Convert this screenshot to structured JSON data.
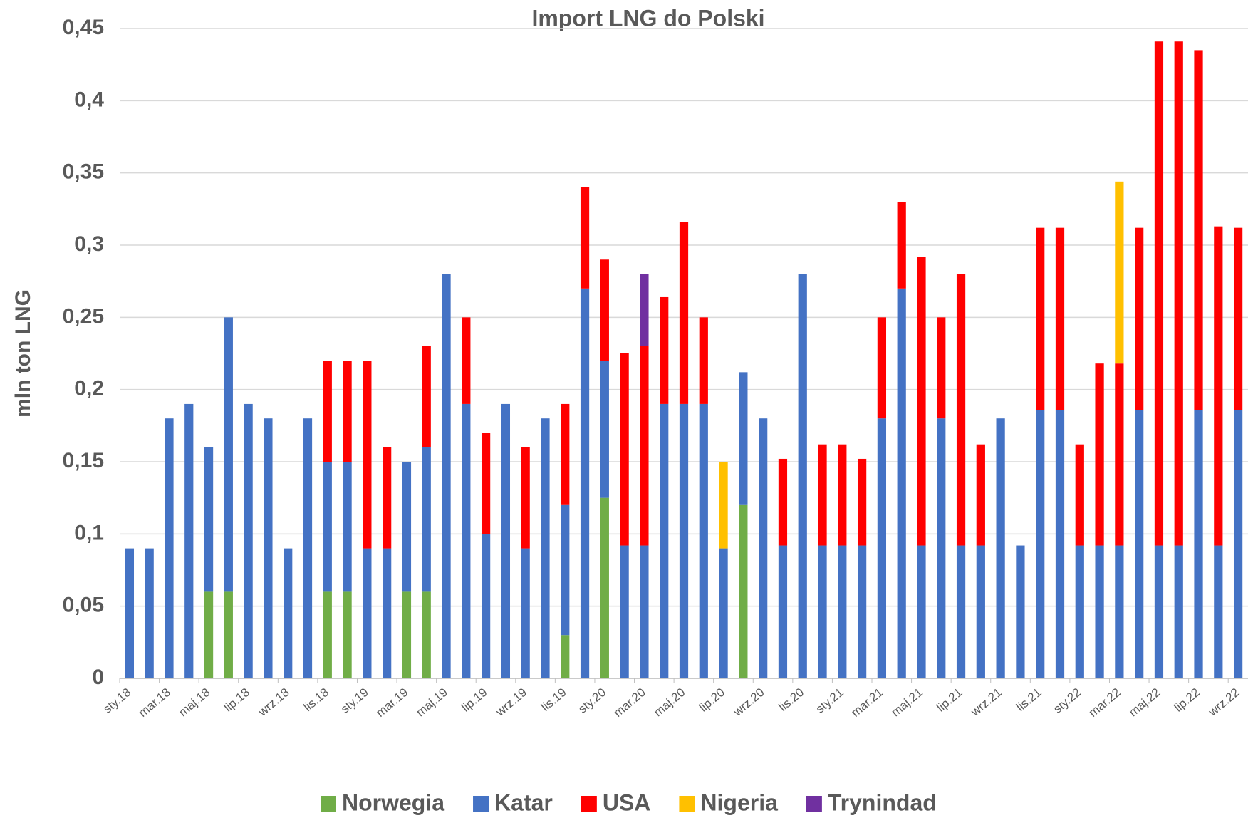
{
  "chart_data": {
    "type": "stacked_bar",
    "title": "Import LNG do Polski",
    "y_label": "mln ton LNG",
    "categories": [
      "sty.18",
      null,
      "mar.18",
      null,
      "maj.18",
      null,
      "lip.18",
      null,
      "wrz.18",
      null,
      "lis.18",
      null,
      "sty.19",
      null,
      "mar.19",
      null,
      "maj.19",
      null,
      "lip.19",
      null,
      "wrz.19",
      null,
      "lis.19",
      null,
      "sty.20",
      null,
      "mar.20",
      null,
      "maj.20",
      null,
      "lip.20",
      null,
      "wrz.20",
      null,
      "lis.20",
      null,
      "sty.21",
      null,
      "mar.21",
      null,
      "maj.21",
      null,
      "lip.21",
      null,
      "wrz.21",
      null,
      "lis.21",
      null,
      "sty.22",
      null,
      "mar.22",
      null,
      "maj.22",
      null,
      "lip.22",
      null,
      "wrz.22"
    ],
    "series": [
      {
        "name": "Norwegia",
        "color": "#70ad47",
        "values": [
          null,
          null,
          null,
          null,
          0.06,
          0.06,
          null,
          null,
          null,
          null,
          0.06,
          0.06,
          null,
          null,
          0.06,
          0.06,
          null,
          null,
          null,
          null,
          null,
          null,
          0.03,
          null,
          0.125,
          null,
          null,
          null,
          null,
          null,
          null,
          0.12,
          null,
          null,
          null,
          null,
          null,
          null,
          null,
          null,
          null,
          null,
          null,
          null,
          null,
          null,
          null,
          null,
          null,
          null,
          null,
          null,
          null,
          null,
          null,
          null,
          null
        ]
      },
      {
        "name": "Katar",
        "color": "#4472c4",
        "values": [
          0.09,
          0.09,
          0.18,
          0.19,
          0.1,
          0.19,
          0.19,
          0.18,
          0.09,
          0.18,
          0.09,
          0.09,
          0.09,
          0.09,
          0.09,
          0.1,
          0.28,
          0.19,
          0.1,
          0.19,
          0.09,
          0.18,
          0.09,
          0.27,
          0.095,
          0.092,
          0.092,
          0.19,
          0.19,
          0.19,
          0.09,
          0.092,
          0.18,
          0.092,
          0.28,
          0.092,
          0.092,
          0.092,
          0.18,
          0.27,
          0.092,
          0.18,
          0.092,
          0.092,
          0.18,
          0.092,
          0.186,
          0.186,
          0.092,
          0.092,
          0.092,
          0.186,
          0.092,
          0.092,
          0.186,
          0.092,
          0.186
        ]
      },
      {
        "name": "USA",
        "color": "#ff0000",
        "values": [
          null,
          null,
          null,
          null,
          null,
          null,
          null,
          null,
          null,
          null,
          0.07,
          0.07,
          0.13,
          0.07,
          null,
          0.07,
          null,
          0.06,
          0.07,
          null,
          0.07,
          null,
          0.07,
          0.07,
          0.07,
          0.133,
          0.138,
          0.074,
          0.126,
          0.06,
          null,
          null,
          null,
          0.06,
          null,
          0.07,
          0.07,
          0.06,
          0.07,
          0.06,
          0.2,
          0.07,
          0.188,
          0.07,
          null,
          null,
          0.126,
          0.126,
          0.07,
          0.126,
          0.126,
          0.126,
          0.349,
          0.349,
          0.249,
          0.221,
          0.126
        ]
      },
      {
        "name": "Nigeria",
        "color": "#ffc000",
        "values": [
          null,
          null,
          null,
          null,
          null,
          null,
          null,
          null,
          null,
          null,
          null,
          null,
          null,
          null,
          null,
          null,
          null,
          null,
          null,
          null,
          null,
          null,
          null,
          null,
          null,
          null,
          null,
          null,
          null,
          null,
          0.06,
          null,
          null,
          null,
          null,
          null,
          null,
          null,
          null,
          null,
          null,
          null,
          null,
          null,
          null,
          null,
          null,
          null,
          null,
          null,
          0.126,
          null,
          null,
          null,
          null,
          null,
          null
        ]
      },
      {
        "name": "Trynindad",
        "color": "#7030a0",
        "values": [
          null,
          null,
          null,
          null,
          null,
          null,
          null,
          null,
          null,
          null,
          null,
          null,
          null,
          null,
          null,
          null,
          null,
          null,
          null,
          null,
          null,
          null,
          null,
          null,
          null,
          null,
          0.05,
          null,
          null,
          null,
          null,
          null,
          null,
          null,
          null,
          null,
          null,
          null,
          null,
          null,
          null,
          null,
          null,
          null,
          null,
          null,
          null,
          null,
          null,
          null,
          null,
          null,
          null,
          null,
          null,
          null,
          null
        ]
      }
    ],
    "ylim": [
      0,
      0.45
    ],
    "yticks": [
      0,
      {
        "value": 0.05,
        "label": "0,05"
      },
      {
        "value": 0.1,
        "label": "0,1"
      },
      {
        "value": 0.15,
        "label": "0,15"
      },
      {
        "value": 0.2,
        "label": "0,2"
      },
      {
        "value": 0.25,
        "label": "0,25"
      },
      {
        "value": 0.3,
        "label": "0,3"
      },
      {
        "value": 0.35,
        "label": "0,35"
      },
      {
        "value": 0.4,
        "label": "0,4"
      },
      {
        "value": 0.45,
        "label": "0,45"
      }
    ],
    "grid": true,
    "legend": "bottom"
  }
}
